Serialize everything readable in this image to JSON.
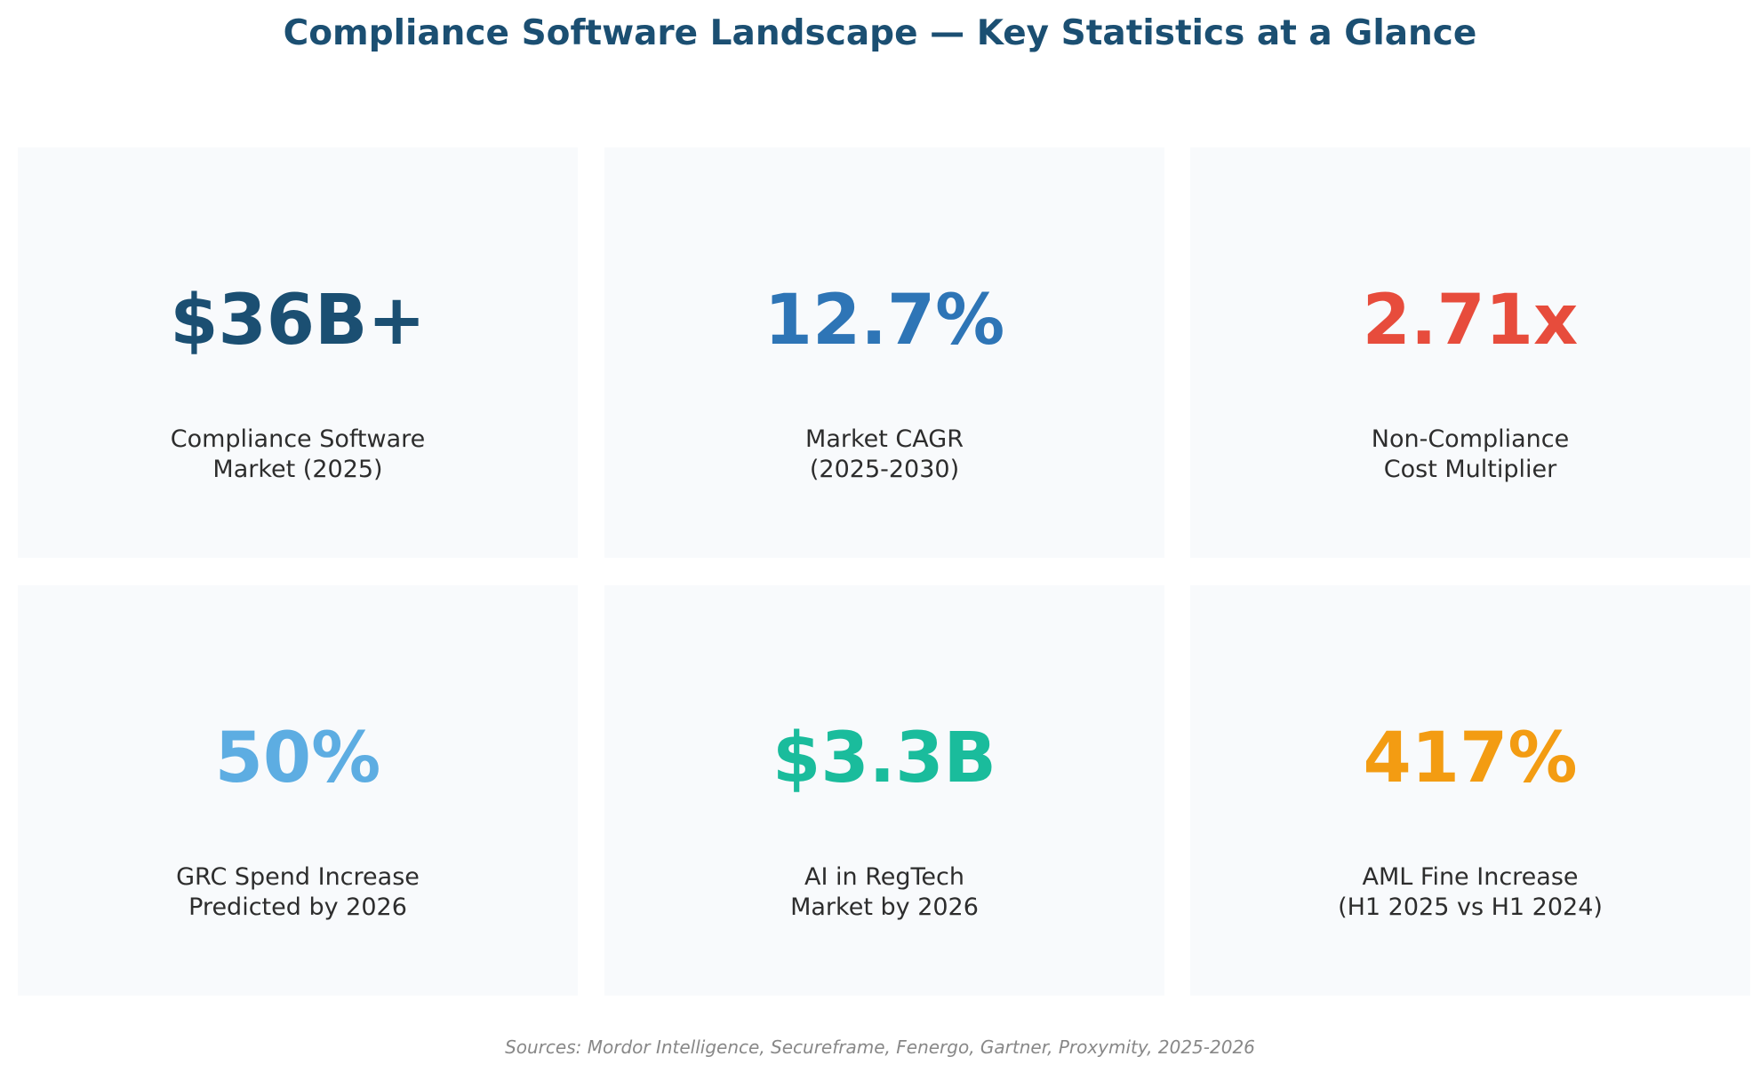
{
  "title": "Compliance Software Landscape — Key Statistics at a Glance",
  "sources": "Sources: Mordor Intelligence, Secureframe, Fenergo, Gartner, Proxymity, 2025-2026",
  "chart_data": {
    "type": "table",
    "title": "Compliance Software Landscape — Key Statistics at a Glance",
    "stats": [
      {
        "value": "$36B+",
        "label_lines": [
          "Compliance Software",
          "Market (2025)"
        ],
        "color": "#1b4f72"
      },
      {
        "value": "12.7%",
        "label_lines": [
          "Market CAGR",
          "(2025-2030)"
        ],
        "color": "#2e75b6"
      },
      {
        "value": "2.71x",
        "label_lines": [
          "Non-Compliance",
          "Cost Multiplier"
        ],
        "color": "#e74c3c"
      },
      {
        "value": "50%",
        "label_lines": [
          "GRC Spend Increase",
          "Predicted by 2026"
        ],
        "color": "#5dade2"
      },
      {
        "value": "$3.3B",
        "label_lines": [
          "AI in RegTech",
          "Market by 2026"
        ],
        "color": "#1abc9c"
      },
      {
        "value": "417%",
        "label_lines": [
          "AML Fine Increase",
          "(H1 2025 vs H1 2024)"
        ],
        "color": "#f39c12"
      }
    ]
  }
}
